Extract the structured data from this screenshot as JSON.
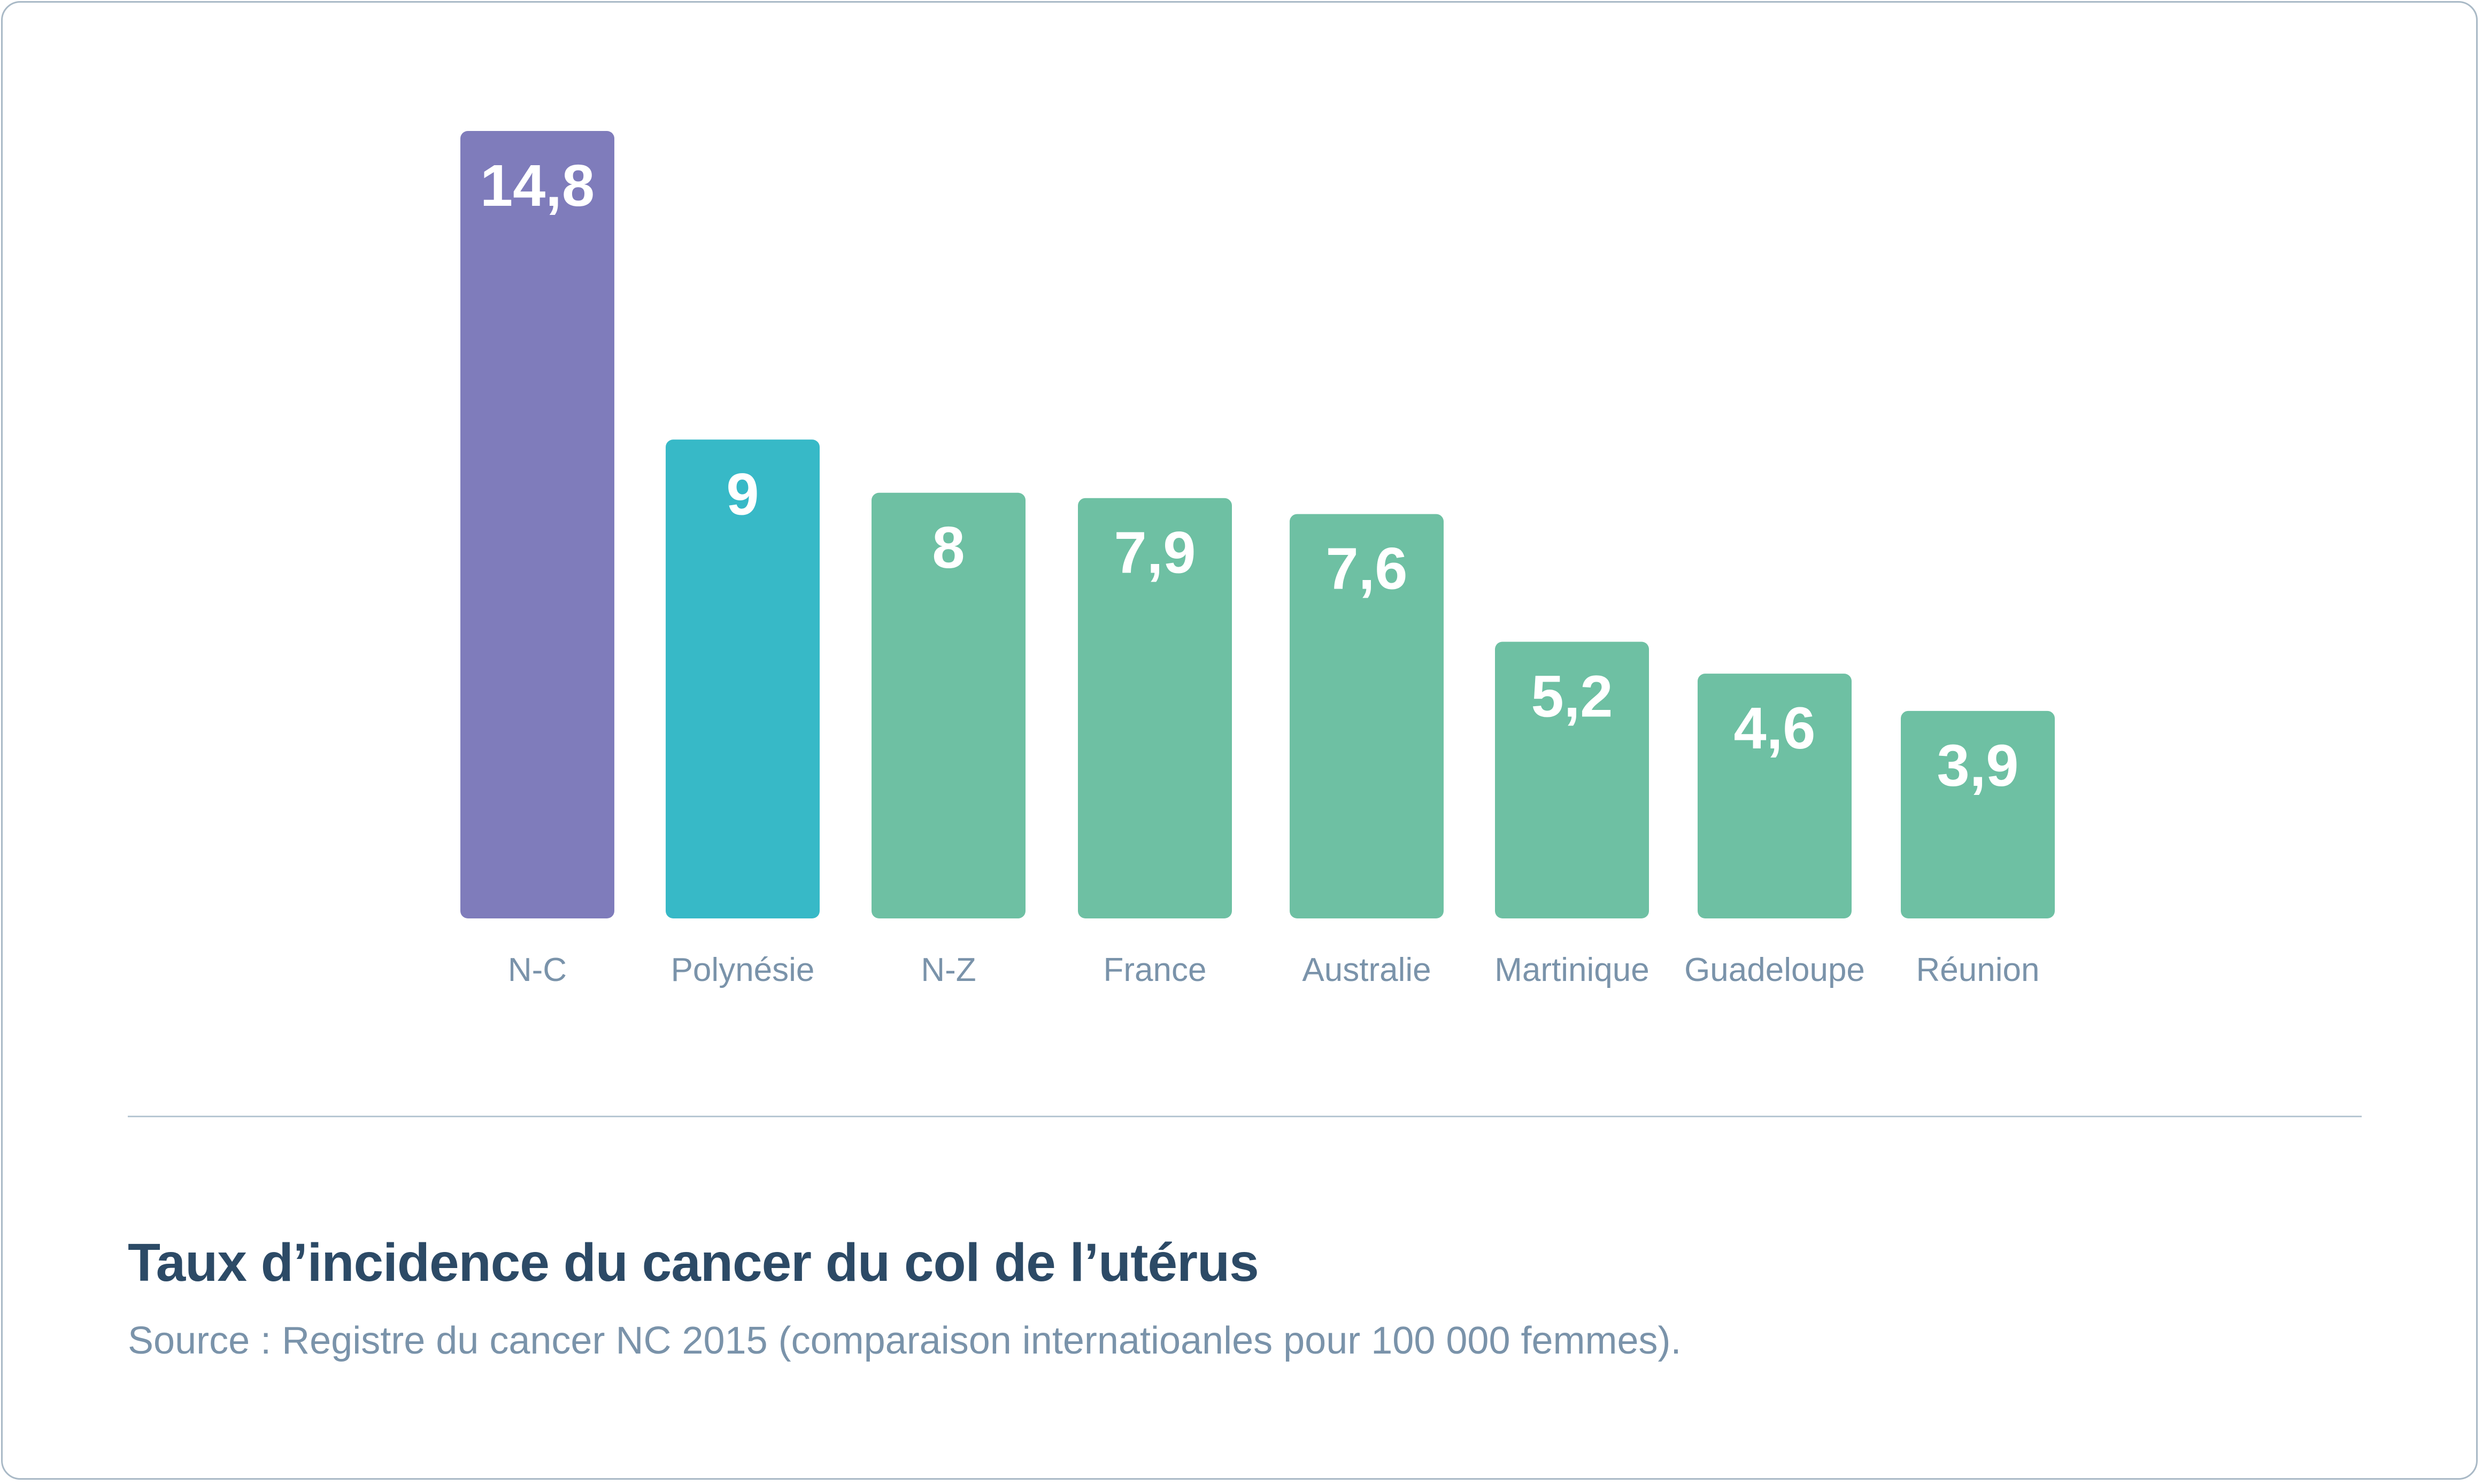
{
  "chart_data": {
    "type": "bar",
    "categories": [
      "N-C",
      "Polynésie",
      "N-Z",
      "France",
      "Australie",
      "Martinique",
      "Guadeloupe",
      "Réunion"
    ],
    "values": [
      14.8,
      9,
      8,
      7.9,
      7.6,
      5.2,
      4.6,
      3.9
    ],
    "value_labels": [
      "14,8",
      "9",
      "8",
      "7,9",
      "7,6",
      "5,2",
      "4,6",
      "3,9"
    ],
    "title": "Taux d’incidence du cancer du col de l’utérus",
    "subtitle": "Source : Registre du cancer NC 2015 (comparaison internatioanles pour 100 000 femmes).",
    "xlabel": "",
    "ylabel": "",
    "ylim": [
      0,
      14.8
    ],
    "grid": false,
    "legend": "none",
    "colors": [
      "#7f7cbb",
      "#37b9c7",
      "#6ec0a3",
      "#6ec0a3",
      "#6ec0a3",
      "#6ec0a3",
      "#6ec0a3",
      "#6ec0a3"
    ],
    "label_color": "#ffffff",
    "category_label_color": "#7a93aa"
  },
  "caption": {
    "title": "Taux d’incidence du cancer du col de l’utérus",
    "source": "Source : Registre du cancer NC 2015 (comparaison internatioanles pour 100 000 femmes)."
  }
}
